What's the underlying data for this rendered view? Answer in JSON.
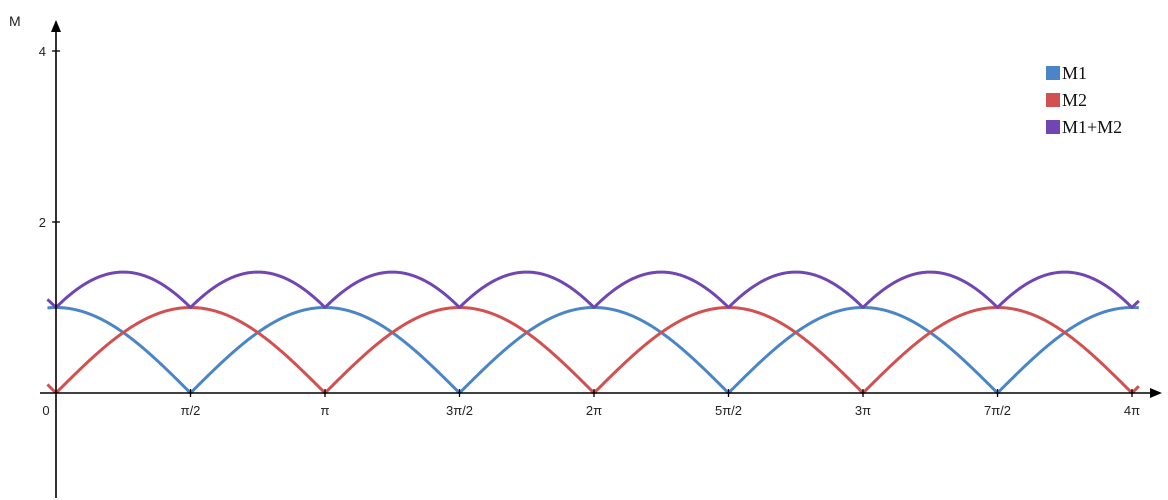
{
  "chart_data": {
    "type": "line",
    "ylabel": "M",
    "xlabel": "",
    "xlim": [
      0,
      12.566370614359172
    ],
    "ylim": [
      -1.1,
      4.1
    ],
    "x_ticks": [
      {
        "value": 0,
        "label": "0"
      },
      {
        "value": 1.5707963267948966,
        "label": "π/2"
      },
      {
        "value": 3.141592653589793,
        "label": "π"
      },
      {
        "value": 4.71238898038469,
        "label": "3π/2"
      },
      {
        "value": 6.283185307179586,
        "label": "2π"
      },
      {
        "value": 7.853981633974483,
        "label": "5π/2"
      },
      {
        "value": 9.42477796076938,
        "label": "3π"
      },
      {
        "value": 10.995574287564276,
        "label": "7π/2"
      },
      {
        "value": 12.566370614359172,
        "label": "4π"
      }
    ],
    "y_ticks": [
      {
        "value": 2,
        "label": "2"
      },
      {
        "value": 4,
        "label": "4"
      }
    ],
    "grid": false,
    "legend_position": "top-right",
    "series": [
      {
        "name": "M1",
        "color": "#4a86c7",
        "x": [
          0,
          0.3927,
          0.7854,
          1.1781,
          1.5708,
          1.9635,
          2.3562,
          2.7489,
          3.1416,
          3.5343,
          3.927,
          4.3197,
          4.7124,
          5.1051,
          5.4978,
          5.8905,
          6.2832,
          6.6759,
          7.0686,
          7.4613,
          7.854,
          8.2467,
          8.6394,
          9.0321,
          9.4248,
          9.8175,
          10.2102,
          10.6029,
          10.9956,
          11.3883,
          11.781,
          12.1737,
          12.5664
        ],
        "values": [
          1.0,
          0.924,
          0.707,
          0.383,
          0.0,
          0.383,
          0.707,
          0.924,
          1.0,
          0.924,
          0.707,
          0.383,
          0.0,
          0.383,
          0.707,
          0.924,
          1.0,
          0.924,
          0.707,
          0.383,
          0.0,
          0.383,
          0.707,
          0.924,
          1.0,
          0.924,
          0.707,
          0.383,
          0.0,
          0.383,
          0.707,
          0.924,
          1.0
        ]
      },
      {
        "name": "M2",
        "color": "#d2504f",
        "x": [
          0,
          0.3927,
          0.7854,
          1.1781,
          1.5708,
          1.9635,
          2.3562,
          2.7489,
          3.1416,
          3.5343,
          3.927,
          4.3197,
          4.7124,
          5.1051,
          5.4978,
          5.8905,
          6.2832,
          6.6759,
          7.0686,
          7.4613,
          7.854,
          8.2467,
          8.6394,
          9.0321,
          9.4248,
          9.8175,
          10.2102,
          10.6029,
          10.9956,
          11.3883,
          11.781,
          12.1737,
          12.5664
        ],
        "values": [
          0.0,
          0.383,
          0.707,
          0.924,
          1.0,
          0.924,
          0.707,
          0.383,
          0.0,
          0.383,
          0.707,
          0.924,
          1.0,
          0.924,
          0.707,
          0.383,
          0.0,
          0.383,
          0.707,
          0.924,
          1.0,
          0.924,
          0.707,
          0.383,
          0.0,
          0.383,
          0.707,
          0.924,
          1.0,
          0.924,
          0.707,
          0.383,
          0.0
        ]
      },
      {
        "name": "M1+M2",
        "color": "#7146b3",
        "x": [
          0,
          0.3927,
          0.7854,
          1.1781,
          1.5708,
          1.9635,
          2.3562,
          2.7489,
          3.1416,
          3.5343,
          3.927,
          4.3197,
          4.7124,
          5.1051,
          5.4978,
          5.8905,
          6.2832,
          6.6759,
          7.0686,
          7.4613,
          7.854,
          8.2467,
          8.6394,
          9.0321,
          9.4248,
          9.8175,
          10.2102,
          10.6029,
          10.9956,
          11.3883,
          11.781,
          12.1737,
          12.5664
        ],
        "values": [
          1.0,
          1.307,
          1.414,
          1.307,
          1.0,
          1.307,
          1.414,
          1.307,
          1.0,
          1.307,
          1.414,
          1.307,
          1.0,
          1.307,
          1.414,
          1.307,
          1.0,
          1.307,
          1.414,
          1.307,
          1.0,
          1.307,
          1.414,
          1.307,
          1.0,
          1.307,
          1.414,
          1.307,
          1.0,
          1.307,
          1.414,
          1.307,
          1.0
        ]
      }
    ]
  }
}
